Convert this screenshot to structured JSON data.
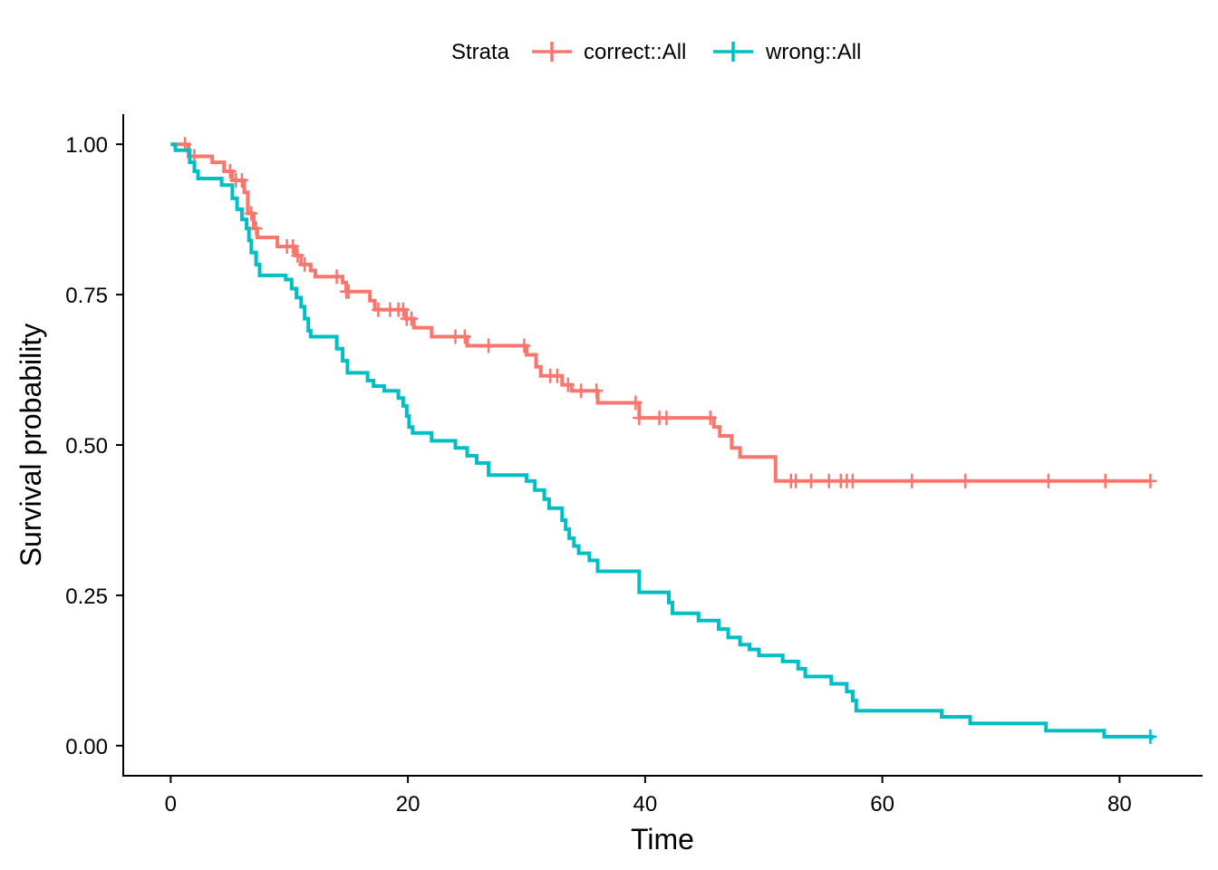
{
  "chart_data": {
    "type": "line",
    "subtype": "kaplan-meier-step",
    "xlabel": "Time",
    "ylabel": "Survival probability",
    "xlim": [
      -4,
      87
    ],
    "ylim": [
      -0.05,
      1.05
    ],
    "x_ticks": [
      0,
      20,
      40,
      60,
      80
    ],
    "x_tick_labels": [
      "0",
      "20",
      "40",
      "60",
      "80"
    ],
    "y_ticks": [
      0.0,
      0.25,
      0.5,
      0.75,
      1.0
    ],
    "y_tick_labels": [
      "0.00",
      "0.25",
      "0.50",
      "0.75",
      "1.00"
    ],
    "grid": false,
    "legend": {
      "title": "Strata",
      "position": "top",
      "entries": [
        "correct::All",
        "wrong::All"
      ]
    },
    "series": [
      {
        "name": "correct::All",
        "color": "#F8766D",
        "steps": [
          [
            0,
            1.0
          ],
          [
            1.5,
            0.98
          ],
          [
            3.5,
            0.97
          ],
          [
            4.5,
            0.955
          ],
          [
            5.2,
            0.94
          ],
          [
            6.2,
            0.92
          ],
          [
            6.5,
            0.885
          ],
          [
            7.0,
            0.86
          ],
          [
            7.3,
            0.845
          ],
          [
            9.0,
            0.83
          ],
          [
            10.5,
            0.815
          ],
          [
            11.0,
            0.8
          ],
          [
            11.8,
            0.79
          ],
          [
            12.2,
            0.78
          ],
          [
            14.5,
            0.77
          ],
          [
            14.8,
            0.755
          ],
          [
            16.8,
            0.74
          ],
          [
            17.2,
            0.725
          ],
          [
            19.8,
            0.71
          ],
          [
            20.5,
            0.695
          ],
          [
            22.0,
            0.68
          ],
          [
            25.0,
            0.665
          ],
          [
            30.0,
            0.65
          ],
          [
            30.8,
            0.63
          ],
          [
            31.2,
            0.615
          ],
          [
            33.0,
            0.6
          ],
          [
            33.8,
            0.59
          ],
          [
            36.0,
            0.57
          ],
          [
            39.5,
            0.545
          ],
          [
            45.8,
            0.53
          ],
          [
            46.3,
            0.515
          ],
          [
            47.3,
            0.495
          ],
          [
            48.0,
            0.48
          ],
          [
            51.0,
            0.44
          ],
          [
            82.7,
            0.44
          ]
        ],
        "censor_times": [
          1.2,
          2.0,
          5.0,
          5.5,
          6.0,
          6.8,
          7.2,
          9.8,
          10.3,
          10.7,
          11.3,
          14.0,
          14.8,
          15.0,
          17.5,
          18.5,
          19.2,
          19.6,
          19.9,
          20.3,
          24.0,
          24.8,
          26.8,
          29.8,
          32.0,
          32.6,
          33.5,
          34.6,
          35.9,
          39.2,
          39.5,
          41.2,
          41.8,
          45.5,
          52.3,
          52.7,
          54.0,
          55.5,
          56.5,
          57.0,
          57.5,
          62.5,
          67.0,
          74.0,
          78.8,
          82.6
        ]
      },
      {
        "name": "wrong::All",
        "color": "#00BFC4",
        "steps": [
          [
            0,
            1.0
          ],
          [
            0.4,
            0.99
          ],
          [
            1.6,
            0.97
          ],
          [
            2.0,
            0.955
          ],
          [
            2.3,
            0.943
          ],
          [
            4.3,
            0.932
          ],
          [
            5.2,
            0.91
          ],
          [
            5.6,
            0.892
          ],
          [
            6.0,
            0.875
          ],
          [
            6.4,
            0.86
          ],
          [
            6.6,
            0.84
          ],
          [
            6.8,
            0.82
          ],
          [
            7.2,
            0.8
          ],
          [
            7.5,
            0.782
          ],
          [
            9.7,
            0.775
          ],
          [
            10.2,
            0.76
          ],
          [
            10.6,
            0.745
          ],
          [
            11.0,
            0.73
          ],
          [
            11.3,
            0.71
          ],
          [
            11.6,
            0.69
          ],
          [
            11.8,
            0.68
          ],
          [
            14.0,
            0.66
          ],
          [
            14.5,
            0.64
          ],
          [
            14.9,
            0.62
          ],
          [
            16.6,
            0.607
          ],
          [
            17.1,
            0.598
          ],
          [
            18.0,
            0.59
          ],
          [
            19.2,
            0.578
          ],
          [
            19.6,
            0.565
          ],
          [
            19.9,
            0.548
          ],
          [
            20.1,
            0.53
          ],
          [
            20.4,
            0.52
          ],
          [
            22.0,
            0.507
          ],
          [
            24.0,
            0.495
          ],
          [
            25.0,
            0.482
          ],
          [
            25.8,
            0.47
          ],
          [
            26.8,
            0.45
          ],
          [
            30.0,
            0.44
          ],
          [
            30.7,
            0.425
          ],
          [
            31.5,
            0.41
          ],
          [
            31.9,
            0.395
          ],
          [
            33.0,
            0.375
          ],
          [
            33.3,
            0.36
          ],
          [
            33.6,
            0.345
          ],
          [
            34.0,
            0.332
          ],
          [
            34.4,
            0.32
          ],
          [
            35.3,
            0.308
          ],
          [
            36.0,
            0.29
          ],
          [
            39.5,
            0.255
          ],
          [
            42.0,
            0.238
          ],
          [
            42.3,
            0.22
          ],
          [
            44.5,
            0.208
          ],
          [
            46.2,
            0.194
          ],
          [
            47.0,
            0.18
          ],
          [
            48.0,
            0.168
          ],
          [
            48.8,
            0.16
          ],
          [
            49.6,
            0.15
          ],
          [
            51.6,
            0.14
          ],
          [
            52.9,
            0.128
          ],
          [
            53.5,
            0.115
          ],
          [
            55.7,
            0.103
          ],
          [
            57.0,
            0.09
          ],
          [
            57.5,
            0.075
          ],
          [
            57.8,
            0.058
          ],
          [
            65.0,
            0.048
          ],
          [
            67.4,
            0.037
          ],
          [
            73.8,
            0.025
          ],
          [
            78.7,
            0.015
          ],
          [
            82.7,
            0.01
          ]
        ],
        "censor_times": [
          82.6
        ]
      }
    ]
  }
}
